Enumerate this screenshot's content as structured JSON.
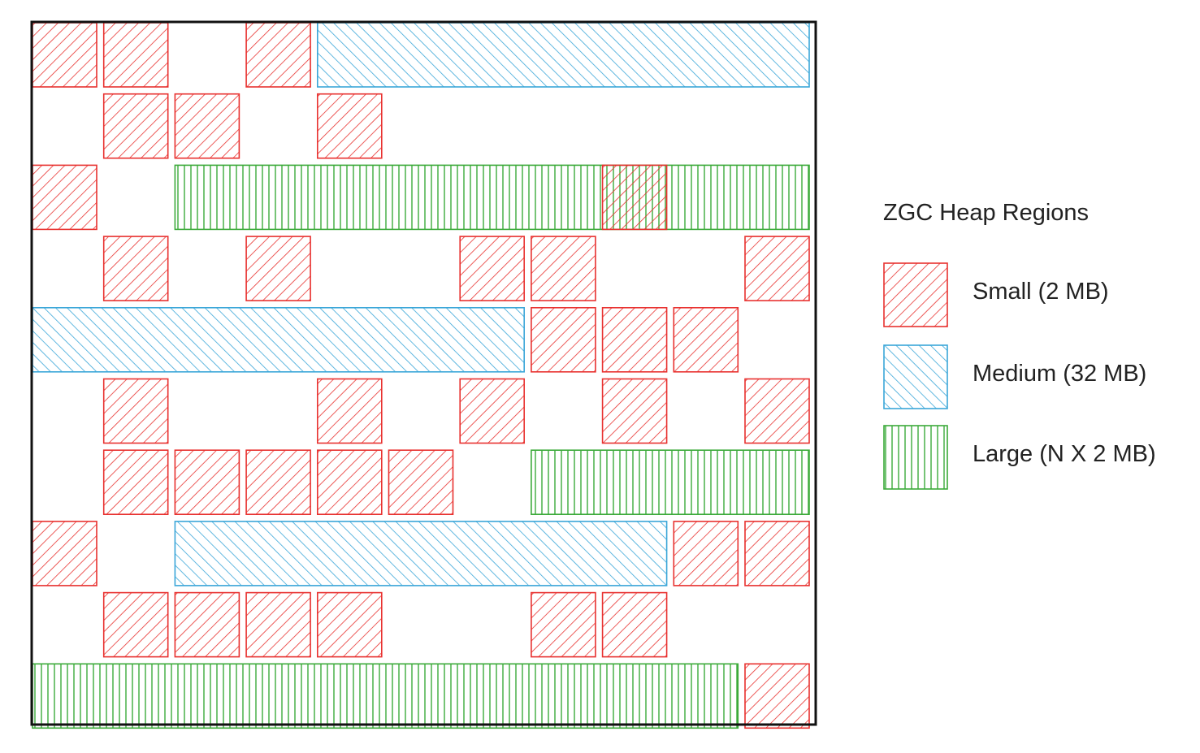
{
  "title": "ZGC Heap Regions",
  "legend": [
    {
      "type": "small",
      "label": "Small (2 MB)",
      "color": "#e8312f",
      "pattern": "diagonal-forward"
    },
    {
      "type": "medium",
      "label": "Medium (32 MB)",
      "color": "#3aa6d8",
      "pattern": "diagonal-backward"
    },
    {
      "type": "large",
      "label": "Large (N X 2 MB)",
      "color": "#3caa3a",
      "pattern": "vertical"
    }
  ],
  "regions": [
    {
      "type": "small",
      "row": 0,
      "col": 0
    },
    {
      "type": "small",
      "row": 0,
      "col": 1
    },
    {
      "type": "small",
      "row": 0,
      "col": 3
    },
    {
      "type": "medium",
      "row": 0,
      "col": 4,
      "span": 7
    },
    {
      "type": "small",
      "row": 1,
      "col": 1
    },
    {
      "type": "small",
      "row": 1,
      "col": 2
    },
    {
      "type": "small",
      "row": 1,
      "col": 4
    },
    {
      "type": "small",
      "row": 2,
      "col": 0
    },
    {
      "type": "large",
      "row": 2,
      "col": 2,
      "span": 9
    },
    {
      "type": "small",
      "row": 2,
      "col": 8
    },
    {
      "type": "small",
      "row": 3,
      "col": 1
    },
    {
      "type": "small",
      "row": 3,
      "col": 3
    },
    {
      "type": "small",
      "row": 3,
      "col": 6
    },
    {
      "type": "small",
      "row": 3,
      "col": 7
    },
    {
      "type": "small",
      "row": 3,
      "col": 10
    },
    {
      "type": "medium",
      "row": 4,
      "col": 0,
      "span": 7
    },
    {
      "type": "small",
      "row": 4,
      "col": 7
    },
    {
      "type": "small",
      "row": 4,
      "col": 8
    },
    {
      "type": "small",
      "row": 4,
      "col": 9
    },
    {
      "type": "small",
      "row": 5,
      "col": 1
    },
    {
      "type": "small",
      "row": 5,
      "col": 4
    },
    {
      "type": "small",
      "row": 5,
      "col": 6
    },
    {
      "type": "small",
      "row": 5,
      "col": 8
    },
    {
      "type": "small",
      "row": 5,
      "col": 10
    },
    {
      "type": "small",
      "row": 6,
      "col": 1
    },
    {
      "type": "small",
      "row": 6,
      "col": 2
    },
    {
      "type": "small",
      "row": 6,
      "col": 3
    },
    {
      "type": "small",
      "row": 6,
      "col": 4
    },
    {
      "type": "small",
      "row": 6,
      "col": 5
    },
    {
      "type": "large",
      "row": 6,
      "col": 7,
      "span": 4
    },
    {
      "type": "small",
      "row": 7,
      "col": 0
    },
    {
      "type": "medium",
      "row": 7,
      "col": 2,
      "span": 7
    },
    {
      "type": "small",
      "row": 7,
      "col": 9
    },
    {
      "type": "small",
      "row": 7,
      "col": 10
    },
    {
      "type": "small",
      "row": 8,
      "col": 1
    },
    {
      "type": "small",
      "row": 8,
      "col": 2
    },
    {
      "type": "small",
      "row": 8,
      "col": 3
    },
    {
      "type": "small",
      "row": 8,
      "col": 4
    },
    {
      "type": "small",
      "row": 8,
      "col": 7
    },
    {
      "type": "small",
      "row": 8,
      "col": 8
    },
    {
      "type": "large",
      "row": 9,
      "col": 0,
      "span": 10
    },
    {
      "type": "small",
      "row": 9,
      "col": 10
    }
  ]
}
